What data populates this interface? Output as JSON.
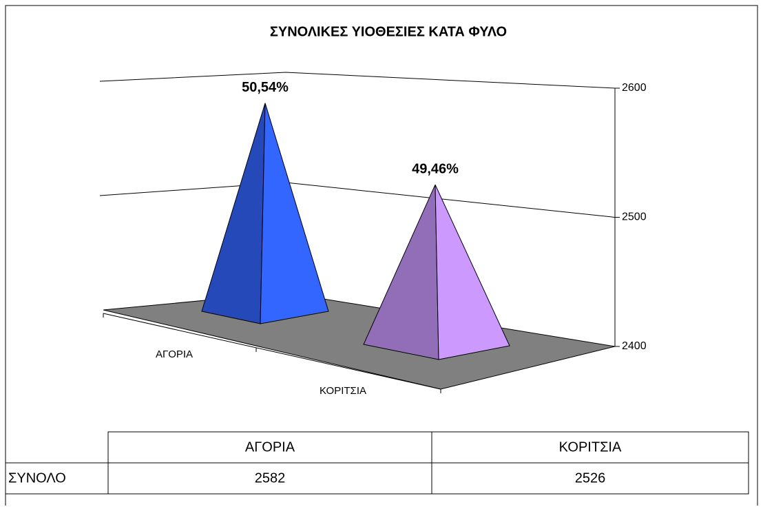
{
  "chart_data": {
    "type": "pyramid",
    "title": "ΣΥΝΟΛΙΚΕΣ ΥΙΟΘΕΣΙΕΣ ΚΑΤΑ ΦΥΛΟ",
    "categories": [
      "ΑΓΟΡΙΑ",
      "ΚΟΡΙΤΣΙΑ"
    ],
    "series": [
      {
        "name": "ΣΥΝΟΛΟ",
        "values": [
          2582,
          2526
        ]
      }
    ],
    "colors": [
      "#3366ff",
      "#cc99ff"
    ],
    "shares": {
      "values": [
        50.54,
        49.46
      ],
      "value_labels": [
        "50,54%",
        "49,46%"
      ]
    },
    "ylim": [
      2400,
      2600
    ],
    "yticks": [
      2400,
      2500,
      2600
    ],
    "grid": true
  }
}
